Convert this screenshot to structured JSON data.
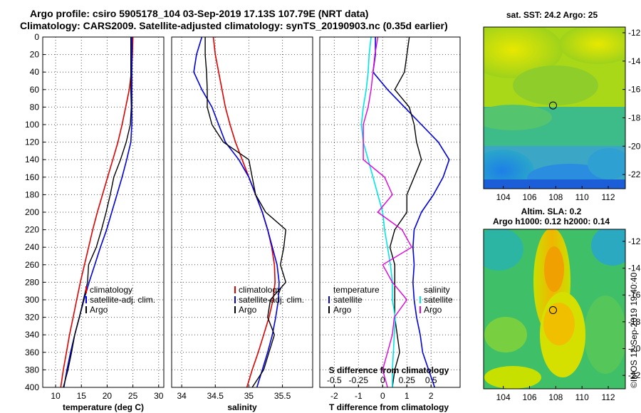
{
  "header": {
    "line1": "Argo profile: csiro 5905178_104 03-Sep-2019 17.13S 107.79E (NRT data)",
    "line2": "Climatology: CARS2009. Satellite-adjusted climatology: synTS_20190903.nc (0.35d earlier)"
  },
  "colors": {
    "climatology": "#e00000",
    "satellite": "#0000e0",
    "argo": "#000000",
    "s_diff": "#e000e0",
    "t_diff": "#00e6e6"
  },
  "watermark": "©IMOS 12-Sep-2019 19:40:40",
  "chart_data": [
    {
      "id": "temperature",
      "type": "line",
      "xlabel": "temperature (deg C)",
      "ylabel": "depth",
      "xlim": [
        7.5,
        31
      ],
      "ylim": [
        400,
        0
      ],
      "xticks": [
        10,
        15,
        20,
        25,
        30
      ],
      "yticks": [
        0,
        20,
        40,
        60,
        80,
        100,
        120,
        140,
        160,
        180,
        200,
        220,
        240,
        260,
        280,
        300,
        320,
        340,
        360,
        380,
        400
      ],
      "legend": [
        "climatology",
        "satellite-adj. clim.",
        "Argo"
      ],
      "series": [
        {
          "name": "climatology",
          "color": "#e00000",
          "x": [
            25,
            24.9,
            24.7,
            24.3,
            23.6,
            22.9,
            22.1,
            21.1,
            20.1,
            19.1,
            18.1,
            17.2,
            16.4,
            15.6,
            14.8,
            14.1,
            13.4,
            12.7,
            12.1,
            11.5,
            11.0
          ],
          "y": [
            0,
            20,
            40,
            60,
            80,
            100,
            120,
            140,
            160,
            180,
            200,
            220,
            240,
            260,
            280,
            300,
            320,
            340,
            360,
            380,
            400
          ]
        },
        {
          "name": "satellite-adj. clim.",
          "color": "#0000e0",
          "x": [
            24.8,
            24.8,
            24.8,
            24.8,
            24.8,
            24.8,
            24.6,
            23.8,
            22.9,
            21.9,
            20.9,
            19.9,
            18.7,
            17.6,
            16.5,
            15.5,
            14.6,
            13.7,
            12.9,
            12.2,
            11.6
          ],
          "y": [
            0,
            20,
            40,
            60,
            80,
            100,
            120,
            140,
            160,
            180,
            200,
            220,
            240,
            260,
            280,
            300,
            320,
            340,
            360,
            380,
            400
          ]
        },
        {
          "name": "Argo",
          "color": "#000000",
          "x": [
            24.6,
            24.6,
            24.6,
            24.6,
            24.7,
            24.5,
            23.7,
            22.6,
            21.3,
            20.6,
            19.8,
            18.9,
            17.9,
            16.4,
            16.2,
            15.4,
            14.6,
            13.7,
            13.1,
            12.4,
            11.5
          ],
          "y": [
            0,
            20,
            40,
            60,
            80,
            100,
            120,
            140,
            160,
            180,
            200,
            220,
            240,
            260,
            280,
            300,
            320,
            340,
            360,
            380,
            400
          ]
        }
      ]
    },
    {
      "id": "salinity",
      "type": "line",
      "xlabel": "salinity",
      "xlim": [
        33.85,
        35.95
      ],
      "ylim": [
        400,
        0
      ],
      "xticks": [
        34,
        34.5,
        35,
        35.5
      ],
      "legend": [
        "climatology",
        "satellite-adj. clim.",
        "Argo"
      ],
      "series": [
        {
          "name": "climatology",
          "color": "#e00000",
          "x": [
            34.47,
            34.5,
            34.55,
            34.6,
            34.65,
            34.72,
            34.8,
            34.9,
            35.0,
            35.1,
            35.2,
            35.28,
            35.34,
            35.38,
            35.39,
            35.36,
            35.3,
            35.22,
            35.14,
            35.05,
            34.97
          ],
          "y": [
            0,
            20,
            40,
            60,
            80,
            100,
            120,
            140,
            160,
            180,
            200,
            220,
            240,
            260,
            280,
            300,
            320,
            340,
            360,
            380,
            400
          ]
        },
        {
          "name": "satellite-adj. clim.",
          "color": "#0000e0",
          "x": [
            34.3,
            34.22,
            34.18,
            34.3,
            34.45,
            34.55,
            34.65,
            34.85,
            35.0,
            35.1,
            35.2,
            35.28,
            35.35,
            35.42,
            35.45,
            35.44,
            35.4,
            35.35,
            35.28,
            35.2,
            35.12
          ],
          "y": [
            0,
            20,
            40,
            60,
            80,
            100,
            120,
            140,
            160,
            180,
            200,
            220,
            240,
            260,
            280,
            300,
            320,
            340,
            360,
            380,
            400
          ]
        },
        {
          "name": "Argo",
          "color": "#000000",
          "x": [
            34.35,
            34.35,
            34.37,
            34.38,
            34.38,
            34.45,
            34.62,
            35.0,
            35.05,
            35.1,
            35.25,
            35.55,
            35.52,
            35.47,
            35.55,
            35.32,
            35.28,
            35.38,
            35.3,
            35.22,
            35.05
          ],
          "y": [
            0,
            20,
            40,
            60,
            80,
            100,
            120,
            140,
            160,
            180,
            200,
            220,
            240,
            260,
            280,
            300,
            320,
            340,
            360,
            380,
            400
          ]
        }
      ]
    },
    {
      "id": "difference",
      "type": "line",
      "xlabel": "T difference from climatology",
      "x2label": "S difference from climatology",
      "xlim": [
        -2.6,
        3.2
      ],
      "x2lim": [
        -0.65,
        0.8
      ],
      "ylim": [
        400,
        0
      ],
      "xticks": [
        -2,
        -1,
        0,
        1,
        2
      ],
      "xticks2": [
        -0.5,
        -0.25,
        0,
        0.25,
        0.5
      ],
      "legend_titles": [
        "temperature",
        "salinity"
      ],
      "legend": [
        "satellite",
        "Argo"
      ],
      "series": [
        {
          "name": "T satellite",
          "color": "#0000e0",
          "x": [
            -0.3,
            -0.3,
            -0.4,
            0.2,
            0.9,
            1.6,
            2.3,
            2.75,
            2.5,
            2.1,
            1.6,
            1.3,
            1.25,
            1.3,
            1.25,
            1.3,
            1.4,
            1.55,
            1.65,
            1.9,
            2.15
          ],
          "y": [
            0,
            20,
            40,
            60,
            80,
            100,
            120,
            140,
            160,
            180,
            200,
            220,
            240,
            260,
            280,
            300,
            320,
            340,
            360,
            380,
            400
          ]
        },
        {
          "name": "T Argo",
          "color": "#000000",
          "x": [
            1.1,
            1.0,
            0.9,
            0.5,
            1.1,
            1.3,
            1.4,
            1.6,
            1.3,
            1.0,
            1.0,
            0.5,
            0.3,
            0.5,
            0.5,
            0.5,
            0.5,
            0.6,
            0.7,
            0.5,
            0.4
          ],
          "y": [
            0,
            20,
            40,
            60,
            80,
            100,
            120,
            140,
            160,
            180,
            200,
            220,
            240,
            260,
            280,
            300,
            320,
            340,
            360,
            380,
            400
          ]
        },
        {
          "name": "S satellite",
          "color": "#00e6e6",
          "x": [
            -0.12,
            -0.14,
            -0.15,
            -0.17,
            -0.2,
            -0.22,
            -0.2,
            -0.15,
            -0.1,
            -0.05,
            0.0,
            0.02,
            0.05,
            0.08,
            0.1,
            0.1,
            0.13,
            0.12,
            0.11,
            0.1,
            0.1
          ],
          "y": [
            0,
            20,
            40,
            60,
            80,
            100,
            120,
            140,
            160,
            180,
            200,
            220,
            240,
            260,
            280,
            300,
            320,
            340,
            360,
            380,
            400
          ]
        },
        {
          "name": "S Argo",
          "color": "#e000e0",
          "x": [
            -0.05,
            -0.08,
            -0.1,
            -0.12,
            -0.15,
            -0.2,
            -0.2,
            -0.2,
            0.02,
            0.1,
            -0.05,
            0.2,
            0.3,
            0.0,
            0.1,
            0.25,
            0.12,
            0.1,
            0.05,
            0.0,
            0.05
          ],
          "y": [
            0,
            20,
            40,
            60,
            80,
            100,
            120,
            140,
            160,
            180,
            200,
            220,
            240,
            260,
            280,
            300,
            320,
            340,
            360,
            380,
            400
          ]
        }
      ]
    },
    {
      "id": "sst_map",
      "type": "heatmap",
      "title": "sat. SST: 24.2 Argo: 25",
      "xlim": [
        102.5,
        113.3
      ],
      "ylim": [
        -23,
        -11.6
      ],
      "xticks": [
        104,
        106,
        108,
        110,
        112
      ],
      "yticks": [
        -12,
        -14,
        -16,
        -18,
        -20,
        -22
      ],
      "marker": {
        "lon": 107.79,
        "lat": -17.13
      }
    },
    {
      "id": "sla_map",
      "type": "heatmap",
      "title_line1": "Altim. SLA: 0.2",
      "title_line2": "Argo h1000: 0.12 h2000: 0.14",
      "xlim": [
        102.5,
        113.3
      ],
      "ylim": [
        -23,
        -11.1
      ],
      "xticks": [
        104,
        106,
        108,
        110,
        112
      ],
      "yticks": [
        -12,
        -14,
        -16,
        -18,
        -20,
        -22
      ],
      "marker": {
        "lon": 107.79,
        "lat": -17.13
      }
    }
  ]
}
